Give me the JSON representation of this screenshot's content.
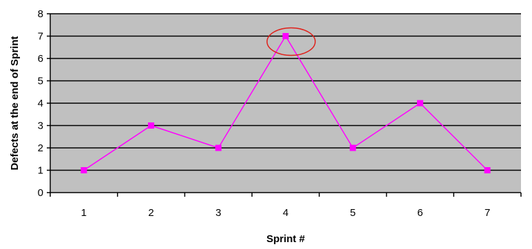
{
  "chart_data": {
    "type": "line",
    "title": "",
    "xlabel": "Sprint #",
    "ylabel": "Defects at the end of Sprint",
    "categories": [
      "1",
      "2",
      "3",
      "4",
      "5",
      "6",
      "7"
    ],
    "series": [
      {
        "values": [
          1,
          3,
          2,
          7,
          2,
          4,
          1
        ]
      }
    ],
    "ylim": [
      0,
      8
    ],
    "yticks": [
      "0",
      "1",
      "2",
      "3",
      "4",
      "5",
      "6",
      "7",
      "8"
    ],
    "grid": true,
    "legend": "none",
    "highlight_category": "4",
    "colors": {
      "plot_background": "#c0c0c0",
      "gridline": "#000000",
      "line": "#ff00ff",
      "marker": "#ff00ff",
      "highlight_ellipse": "#e0201a"
    }
  }
}
